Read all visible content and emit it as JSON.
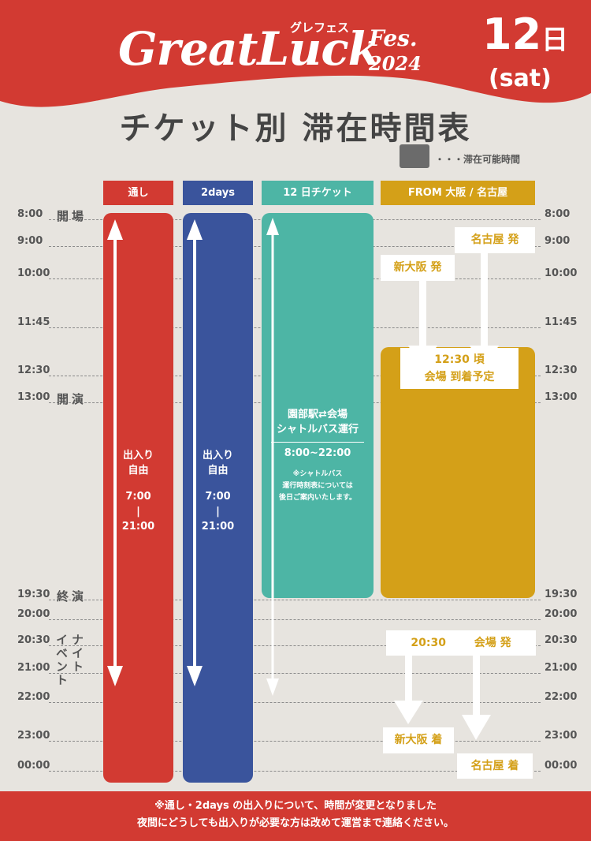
{
  "header": {
    "logo_main": "GreatLuck",
    "logo_kana": "グレフェス",
    "logo_fes": "Fes.",
    "logo_year": "2024",
    "date_num": "12",
    "date_unit": "日",
    "date_dow": "(sat)",
    "color": "#d23a32"
  },
  "title": "チケット別 滞在時間表",
  "legend": {
    "label": "・・・滞在可能時間",
    "swatch_color": "#6b6b6b"
  },
  "columns": [
    {
      "label": "通し",
      "color": "#d23a32"
    },
    {
      "label": "2days",
      "color": "#3a549c"
    },
    {
      "label": "12 日チケット",
      "color": "#4db5a5"
    },
    {
      "label": "FROM 大阪 / 名古屋",
      "color": "#d4a018"
    }
  ],
  "times": [
    "8:00",
    "9:00",
    "10:00",
    "11:45",
    "12:30",
    "13:00",
    "19:30",
    "20:00",
    "20:30",
    "21:00",
    "22:00",
    "23:00",
    "00:00"
  ],
  "side_labels": {
    "open": "開場",
    "start": "開演",
    "end": "終演",
    "night_1": "ナイト",
    "night_2": "イベント"
  },
  "pass_bar": {
    "line1": "出入り",
    "line2": "自由",
    "time_start": "7:00",
    "sep": "|",
    "time_end": "21:00"
  },
  "twodays_bar": {
    "line1": "出入り",
    "line2": "自由",
    "time_start": "7:00",
    "sep": "|",
    "time_end": "21:00"
  },
  "day12_bar": {
    "line1": "園部駅⇄会場",
    "line2": "シャトルバス運行",
    "line3": "8:00~22:00",
    "note1": "※シャトルバス",
    "note2": "運行時刻表については",
    "note3": "後日ご案内いたします。"
  },
  "bus": {
    "nagoya_depart": "名古屋 発",
    "osaka_depart": "新大阪 発",
    "arrive_1": "12:30 頃",
    "arrive_2": "会場 到着予定",
    "venue_depart_time": "20:30",
    "venue_depart": "会場 発",
    "osaka_arrive": "新大阪 着",
    "nagoya_arrive": "名古屋 着"
  },
  "footer": {
    "line1": "※通し・2days の出入りについて、時間が変更となりました",
    "line2": "夜間にどうしても出入りが必要な方は改めて運営まで連絡ください。"
  }
}
